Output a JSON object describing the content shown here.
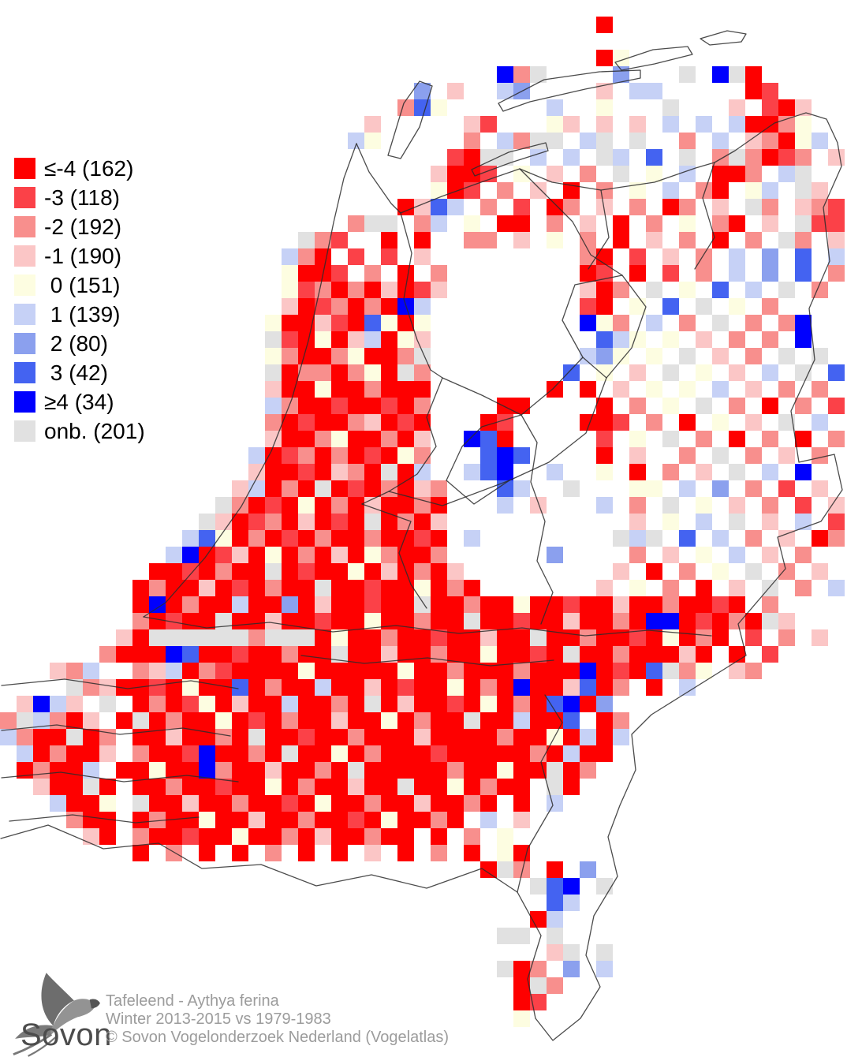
{
  "background": "#ffffff",
  "legend": {
    "items": [
      {
        "label": "≤-4",
        "count": 162,
        "color": "#fe0000"
      },
      {
        "label": "-3",
        "count": 118,
        "color": "#fb4148"
      },
      {
        "label": "-2",
        "count": 192,
        "color": "#f88f8d"
      },
      {
        "label": "-1",
        "count": 190,
        "color": "#fbc6c6"
      },
      {
        "label": " 0",
        "count": 151,
        "color": "#fdfde1"
      },
      {
        "label": " 1",
        "count": 139,
        "color": "#c6d1f6"
      },
      {
        "label": " 2",
        "count": 80,
        "color": "#8ba0ee"
      },
      {
        "label": " 3",
        "count": 42,
        "color": "#4463f1"
      },
      {
        "label": "≥4",
        "count": 34,
        "color": "#0000fe"
      },
      {
        "label": "onb.",
        "count": 201,
        "color": "#e1e1e1"
      }
    ]
  },
  "footer": {
    "species": "Tafeleend - Aythya ferina",
    "period": "Winter 2013-2015 vs 1979-1983",
    "copyright": "© Sovon Vogelonderzoek Nederland (Vogelatlas)"
  },
  "logo": {
    "text": "Sovon"
  },
  "map": {
    "cell_size": 21,
    "cols": 51,
    "class_names": {
      "1": "≤-4",
      "2": "-3",
      "3": "-2",
      "4": "-1",
      "5": "0",
      "6": "1",
      "7": "2",
      "8": "3",
      "9": "≥4",
      "0": "onb."
    },
    "palette": {
      "1": "#fe0000",
      "2": "#fb4148",
      "3": "#f88f8d",
      "4": "#fbc6c6",
      "5": "#fdfde1",
      "6": "#c6d1f6",
      "7": "#8ba0ee",
      "8": "#4463f1",
      "9": "#0000fe",
      "0": "#e1e1e1"
    },
    "rows": [
      "",
      "....................................1",
      "",
      "....................................15",
      "..............................930....7...0.901",
      ".........................7.4..67....4.66.....12",
      "........................385......6..5...0...4.214",
      "......................4.....42...54.4.4.6.6.61135",
      ".....................65.....3.6300.60.0..3.6.43156",
      "...........................2100.6.6.06.8.0.303123.4",
      "..........................4112.5.4.3.0.5.6.113.60",
      "..........................512.3.4.1.3.5.6.31.56.04",
      "........................1486.3.2.13.4.3.13.4.03.432",
      ".....................300.36.5.11.3.4.1.3.5.31.4.022",
      "..................032..1.1..33.4.5.3.1.4.3.1.3.03.4",
      ".................631.2.2.4.........31.2.4.3.6.7.8.6",
      ".................5112.3.1.3........12.1.2.3.6.7.8.3",
      ".................5231314124........413.0.5.8.6.0.3",
      ".................412313196.........21.5.8.0.5.3",
      "................5114218515.........953.6.3.0.3.39",
      "................0215146154..........865.5.4.3.3.9",
      "................5311351130.........675.5.0.4.3.0.0",
      "................0133135103........8.5.4.0.5.4.6.0.8",
      "................4115113111.......1.1.4.5.5.6.4.3.3",
      "................6311211213....11....1.3.5.0.3.1.3.2",
      "................3121134121...12....112.3.1.5.4.0.6",
      "................4113511314..981.....2.5.0.3.1.3.1.3",
      "...............61231312153...898....1.4..3.0.3.4.3",
      "...............41121431016..689..6..5.1.3.4.0.6.9",
      "..............4613101213143...86..0...55.6.7.3.2.4",
      ".............03121513141131...6.4...6.3.0.5.4.3.2.4",
      "............041231412101314...........4.5.6.0.4.6.2",
      "...........6851312131131121.6........060.8.6.3.4.13",
      "..........69124151314153113......7....3.4.5.6.4.3",
      ".........1121311012115141314.........4.1.3.5.0.3.4",
      "........131141213110112115131.......4.5.3.1.4.0.3.6",
      "........1913116117141121101131151121141131121.3",
      "........3121101141121151131101121141131991213104",
      ".......4100000030001511311211411011311215131.2.3.4",
      "......3111981121131101141131151121011311141.1.2",
      "...436..34613211115111115113111311191218035.43",
      "....0341121511813116114121151319114813.1.6",
      ".4964.0.13125141161131014112151318917",
      "306314.1013115121311411513110116118.13",
      "6311013.114113101121131114111131151616",
      ".613114.31129113101151311121111131611",
      ".13116.11511931141131011111311511013",
      "..41101.113112115131141101151311.01",
      "...6115.0114113112151131141131.1.6",
      "....311.13115114113112151131.6.4",
      ".....41.31121151131411311.1.3.5",
      "........1.3.1.1.3.1.1.4.1.3.1.51",
      ".............................103.1.7",
      "................................089.0",
      ".................................86",
      "................................16",
      "..............................00.0",
      ".................................40.0",
      "..............................013.7.6",
      "...............................103",
      "...............................12",
      "...............................5",
      "",
      ""
    ]
  }
}
